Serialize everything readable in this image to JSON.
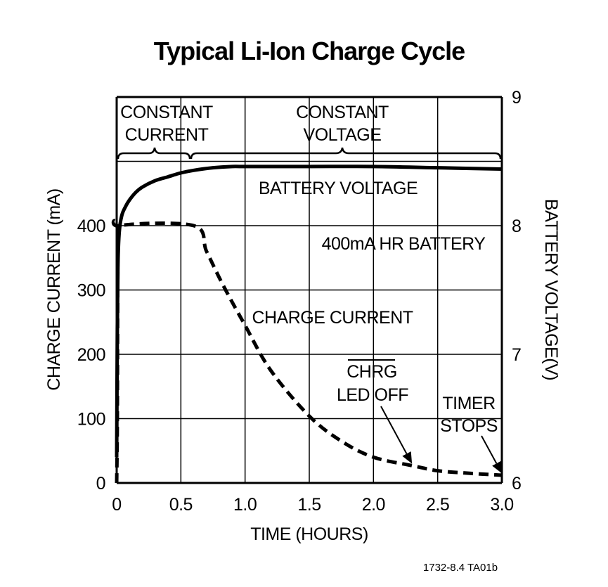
{
  "chart_data": {
    "type": "line",
    "title": "Typical Li-Ion Charge Cycle",
    "xlabel": "TIME (HOURS)",
    "ylabel_left": "CHARGE CURRENT (mA)",
    "ylabel_right": "BATTERY VOLTAGE(V)",
    "xlim": [
      0,
      3.0
    ],
    "ylim_left": [
      0,
      600
    ],
    "ylim_right": [
      6,
      9
    ],
    "grid": true,
    "x_ticks": [
      "0",
      "0.5",
      "1.0",
      "1.5",
      "2.0",
      "2.5",
      "3.0"
    ],
    "y_left_ticks": [
      "0",
      "100",
      "200",
      "300",
      "400"
    ],
    "y_right_ticks": [
      "6",
      "7",
      "8",
      "9"
    ],
    "series": [
      {
        "name": "BATTERY VOLTAGE",
        "axis": "right",
        "style": "solid",
        "x": [
          0.0,
          0.005,
          0.01,
          0.02,
          0.04,
          0.07,
          0.1,
          0.15,
          0.2,
          0.3,
          0.4,
          0.5,
          0.6,
          0.75,
          0.9,
          1.0,
          1.5,
          2.0,
          2.5,
          3.0
        ],
        "y": [
          6.2,
          7.2,
          7.7,
          7.95,
          8.08,
          8.15,
          8.2,
          8.26,
          8.3,
          8.35,
          8.38,
          8.41,
          8.43,
          8.45,
          8.46,
          8.46,
          8.46,
          8.46,
          8.45,
          8.44
        ]
      },
      {
        "name": "CHARGE CURRENT",
        "axis": "left",
        "style": "dashed",
        "x": [
          0.0,
          0.005,
          0.01,
          0.02,
          0.6,
          0.7,
          0.83,
          1.0,
          1.2,
          1.5,
          1.75,
          2.0,
          2.3,
          2.5,
          2.75,
          3.0
        ],
        "y": [
          0,
          100,
          380,
          400,
          400,
          360,
          307,
          245,
          175,
          104,
          65,
          40,
          27,
          19,
          15,
          12
        ]
      }
    ],
    "annotations": {
      "phase_cc": [
        "CONSTANT",
        "CURRENT"
      ],
      "phase_cv": [
        "CONSTANT",
        "VOLTAGE"
      ],
      "battery_voltage": "BATTERY VOLTAGE",
      "battery": "400mA HR BATTERY",
      "charge_current": "CHARGE CURRENT",
      "chrg": "CHRG",
      "led_off": "LED OFF",
      "timer": "TIMER",
      "stops": "STOPS",
      "chrg_arrow_target": {
        "x": 2.3,
        "y": 30
      },
      "timer_arrow_target": {
        "x": 3.0,
        "y": 15
      }
    }
  },
  "footer": "1732-8.4 TA01b"
}
